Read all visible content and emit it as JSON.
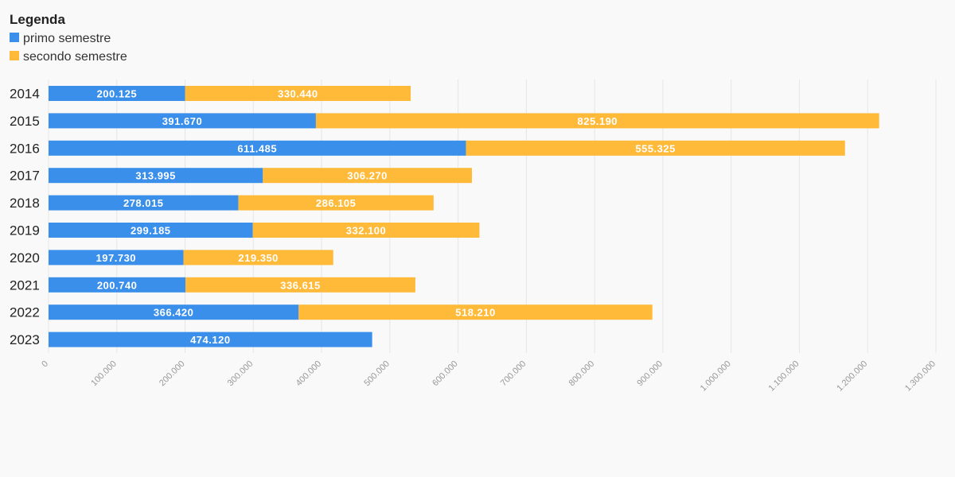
{
  "chart_data": {
    "type": "bar",
    "orientation": "horizontal",
    "stacked": true,
    "legend_title": "Legenda",
    "legend_placement": "top-left",
    "categories": [
      "2014",
      "2015",
      "2016",
      "2017",
      "2018",
      "2019",
      "2020",
      "2021",
      "2022",
      "2023"
    ],
    "series": [
      {
        "name": "primo semestre",
        "color": "#3a8fea",
        "values": [
          200125,
          391670,
          611485,
          313995,
          278015,
          299185,
          197730,
          200740,
          366420,
          474120
        ],
        "labels": [
          "200.125",
          "391.670",
          "611.485",
          "313.995",
          "278.015",
          "299.185",
          "197.730",
          "200.740",
          "366.420",
          "474.120"
        ]
      },
      {
        "name": "secondo semestre",
        "color": "#ffba3a",
        "values": [
          330440,
          825190,
          555325,
          306270,
          286105,
          332100,
          219350,
          336615,
          518210,
          null
        ],
        "labels": [
          "330.440",
          "825.190",
          "555.325",
          "306.270",
          "286.105",
          "332.100",
          "219.350",
          "336.615",
          "518.210",
          null
        ]
      }
    ],
    "xlim": [
      0,
      1300000
    ],
    "x_ticks": [
      0,
      100000,
      200000,
      300000,
      400000,
      500000,
      600000,
      700000,
      800000,
      900000,
      1000000,
      1100000,
      1200000,
      1300000
    ],
    "x_tick_labels": [
      "0",
      "100.000",
      "200.000",
      "300.000",
      "400.000",
      "500.000",
      "600.000",
      "700.000",
      "800.000",
      "900.000",
      "1.000.000",
      "1.100.000",
      "1.200.000",
      "1.300.000"
    ],
    "grid": true,
    "title": "",
    "xlabel": "",
    "ylabel": ""
  }
}
